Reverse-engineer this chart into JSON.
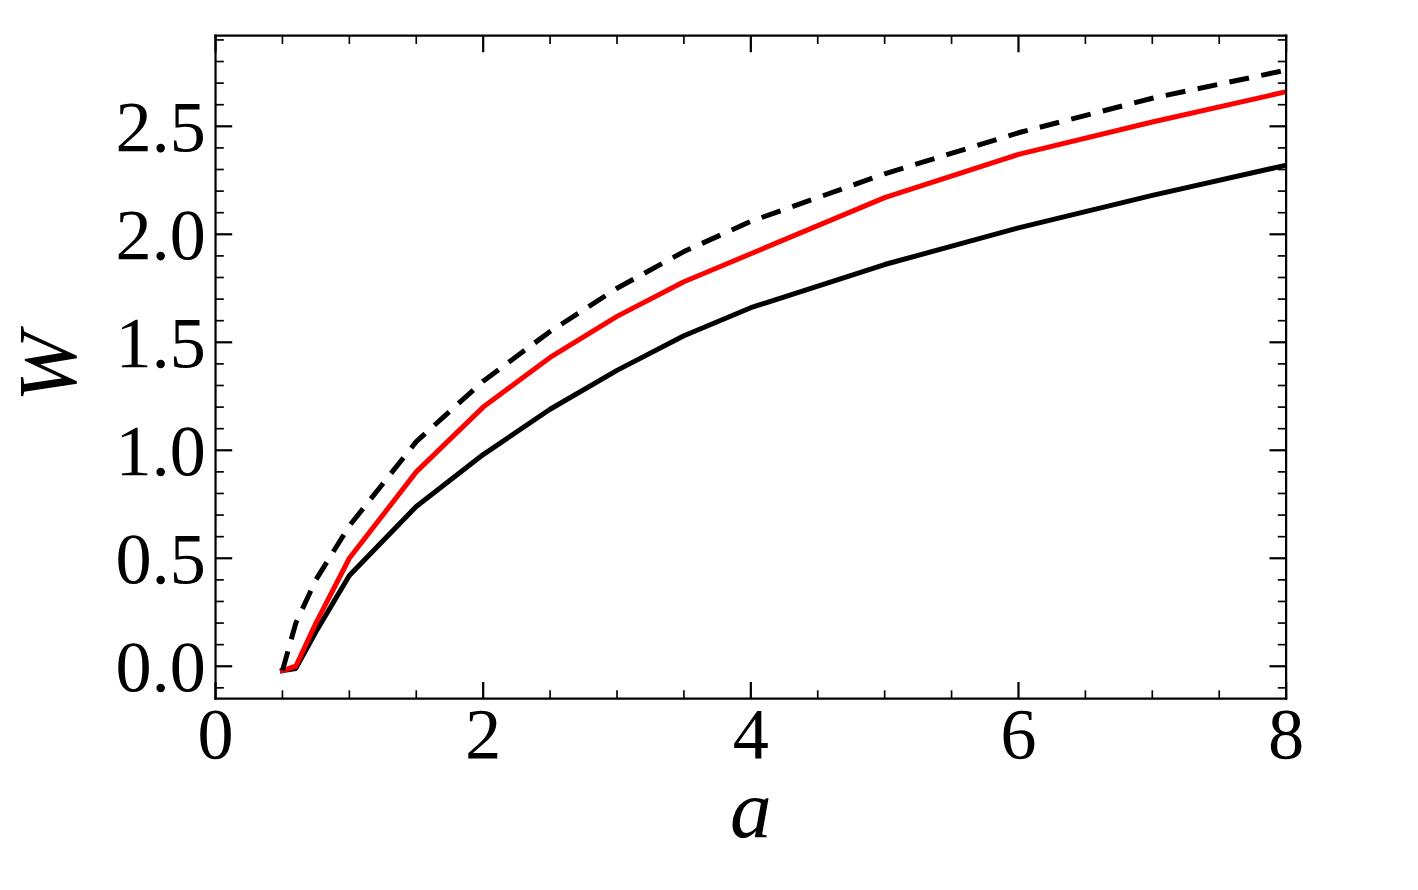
{
  "chart_data": {
    "type": "line",
    "xlabel": "a",
    "ylabel": "W",
    "xlim": [
      0,
      8
    ],
    "xticks": [
      0,
      2,
      4,
      6,
      8
    ],
    "ylim": [
      -0.15,
      2.92
    ],
    "yticks": [
      {
        "value": 0,
        "label": "0.0"
      },
      {
        "value": 0.5,
        "label": "0.5"
      },
      {
        "value": 1,
        "label": "1.0"
      },
      {
        "value": 1.5,
        "label": "1.5"
      },
      {
        "value": 2,
        "label": "2.0"
      },
      {
        "value": 2.5,
        "label": "2.5"
      }
    ],
    "grid": false,
    "legend": false,
    "marker": "none",
    "series": [
      {
        "color": "#000000",
        "line_style": "solid",
        "x": [
          0.5,
          0.6,
          0.75,
          1,
          1.5,
          2,
          2.5,
          3,
          3.5,
          4,
          5,
          6,
          7,
          8
        ],
        "values": [
          -0.02,
          -0.01,
          0.16,
          0.42,
          0.74,
          0.98,
          1.19,
          1.37,
          1.53,
          1.66,
          1.86,
          2.03,
          2.18,
          2.32
        ]
      },
      {
        "color": "#ff0000",
        "line_style": "solid",
        "x": [
          0.5,
          0.6,
          0.75,
          1,
          1.5,
          2,
          2.5,
          3,
          3.5,
          4,
          5,
          6,
          7,
          8
        ],
        "values": [
          -0.02,
          0.0,
          0.2,
          0.5,
          0.9,
          1.2,
          1.43,
          1.62,
          1.78,
          1.91,
          2.17,
          2.37,
          2.52,
          2.66
        ]
      },
      {
        "color": "#000000",
        "line_style": "dashed",
        "x": [
          0.5,
          0.6,
          0.75,
          1,
          1.5,
          2,
          2.5,
          3,
          3.5,
          4,
          5,
          6,
          7,
          8
        ],
        "values": [
          -0.02,
          0.2,
          0.4,
          0.65,
          1.04,
          1.32,
          1.55,
          1.75,
          1.92,
          2.06,
          2.28,
          2.47,
          2.63,
          2.76
        ]
      }
    ]
  }
}
